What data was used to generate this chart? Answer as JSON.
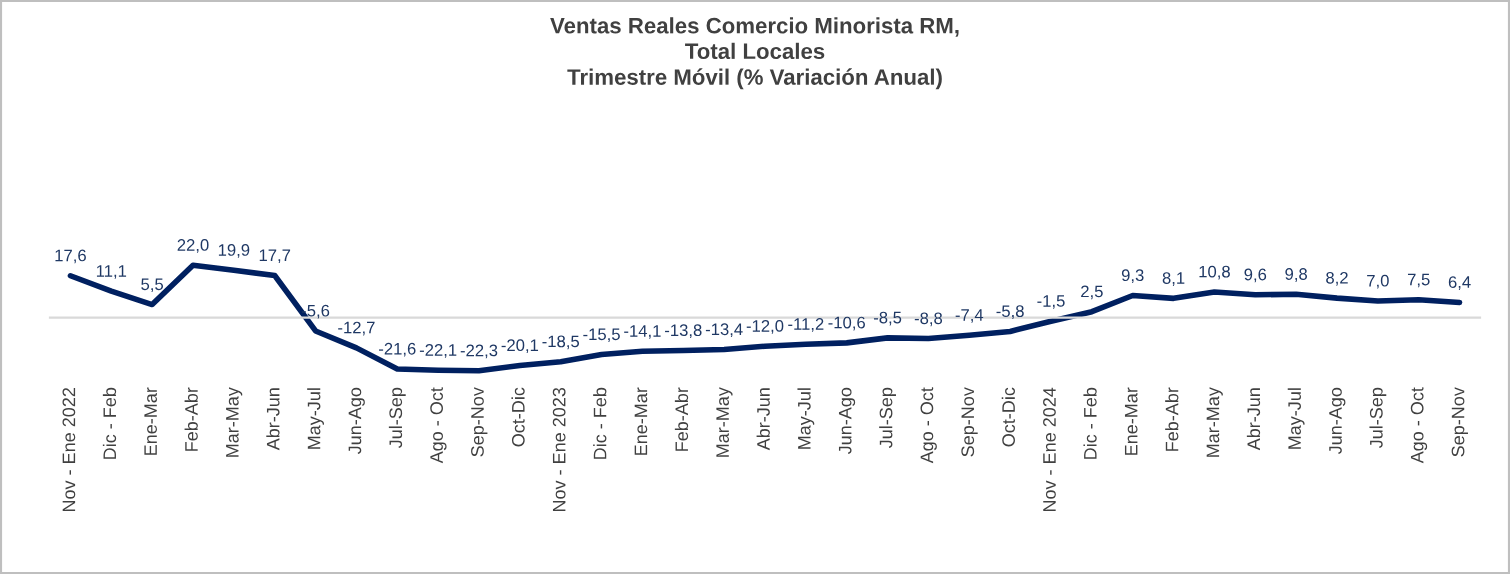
{
  "chart_data": {
    "type": "line",
    "title": "Ventas Reales Comercio Minorista RM,\nTotal Locales\nTrimestre Móvil (% Variación Anual)",
    "categories": [
      "Nov - Ene 2022",
      "Dic - Feb",
      "Ene-Mar",
      "Feb-Abr",
      "Mar-May",
      "Abr-Jun",
      "May-Jul",
      "Jun-Ago",
      "Jul-Sep",
      "Ago - Oct",
      "Sep-Nov",
      "Oct-Dic",
      "Nov - Ene 2023",
      "Dic - Feb",
      "Ene-Mar",
      "Feb-Abr",
      "Mar-May",
      "Abr-Jun",
      "May-Jul",
      "Jun-Ago",
      "Jul-Sep",
      "Ago - Oct",
      "Sep-Nov",
      "Oct-Dic",
      "Nov - Ene 2024",
      "Dic - Feb",
      "Ene-Mar",
      "Feb-Abr",
      "Mar-May",
      "Abr-Jun",
      "May-Jul",
      "Jun-Ago",
      "Jul-Sep",
      "Ago - Oct",
      "Sep-Nov"
    ],
    "series": [
      {
        "color": "#002060",
        "values": [
          17.6,
          11.1,
          5.5,
          22.0,
          19.9,
          17.7,
          -5.6,
          -12.7,
          -21.6,
          -22.1,
          -22.3,
          -20.1,
          -18.5,
          -15.5,
          -14.1,
          -13.8,
          -13.4,
          -12.0,
          -11.2,
          -10.6,
          -8.5,
          -8.8,
          -7.4,
          -5.8,
          -1.5,
          2.5,
          9.3,
          8.1,
          10.8,
          9.6,
          9.8,
          8.2,
          7.0,
          7.5,
          6.4
        ],
        "value_labels": [
          "17,6",
          "11,1",
          "5,5",
          "22,0",
          "19,9",
          "17,7",
          "-5,6",
          "-12,7",
          "-21,6",
          "-22,1",
          "-22,3",
          "-20,1",
          "-18,5",
          "-15,5",
          "-14,1",
          "-13,8",
          "-13,4",
          "-12,0",
          "-11,2",
          "-10,6",
          "-8,5",
          "-8,8",
          "-7,4",
          "-5,8",
          "-1,5",
          "2,5",
          "9,3",
          "8,1",
          "10,8",
          "9,6",
          "9,8",
          "8,2",
          "7,0",
          "7,5",
          "6,4"
        ]
      }
    ],
    "grid": false,
    "legend": false,
    "marker": "none",
    "line_style": "solid"
  }
}
